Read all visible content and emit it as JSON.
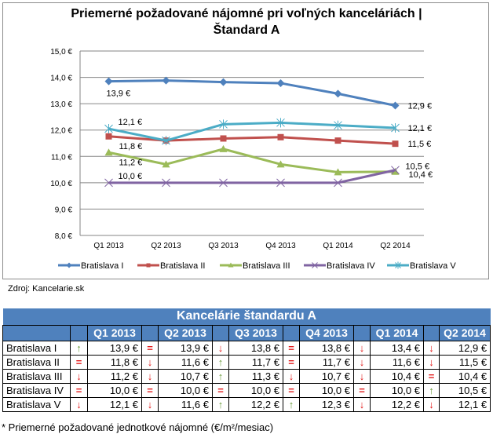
{
  "chart_data": {
    "type": "line",
    "title_line1": "Priemerné  požadované  nájomné  pri voľných kanceláriách  |",
    "title_line2": "Štandard  A",
    "categories": [
      "Q1 2013",
      "Q2 2013",
      "Q3 2013",
      "Q4 2013",
      "Q1 2014",
      "Q2 2014"
    ],
    "ylim": [
      8.0,
      15.0
    ],
    "yticks": [
      "8,0 €",
      "9,0 €",
      "10,0 €",
      "11,0 €",
      "12,0 €",
      "13,0 €",
      "14,0 €",
      "15,0 €"
    ],
    "grid": true,
    "legend_position": "bottom",
    "series": [
      {
        "name": "Bratislava I",
        "color": "#4f81bd",
        "marker": "diamond",
        "values": [
          13.85,
          13.88,
          13.82,
          13.78,
          13.38,
          12.93
        ]
      },
      {
        "name": "Bratislava II",
        "color": "#c0504d",
        "marker": "square",
        "values": [
          11.76,
          11.6,
          11.68,
          11.73,
          11.6,
          11.48
        ]
      },
      {
        "name": "Bratislava III",
        "color": "#9bbb59",
        "marker": "triangle",
        "values": [
          11.15,
          10.7,
          11.28,
          10.7,
          10.4,
          10.42
        ]
      },
      {
        "name": "Bratislava IV",
        "color": "#8064a2",
        "marker": "x",
        "values": [
          10.0,
          10.0,
          10.0,
          10.0,
          10.0,
          10.48
        ]
      },
      {
        "name": "Bratislava V",
        "color": "#4bacc6",
        "marker": "star",
        "values": [
          12.05,
          11.6,
          12.22,
          12.28,
          12.18,
          12.08
        ]
      }
    ],
    "data_labels": [
      {
        "series": 0,
        "point": 0,
        "text": "13,9 €",
        "pos": "below"
      },
      {
        "series": 0,
        "point": 5,
        "text": "12,9 €",
        "pos": "right"
      },
      {
        "series": 4,
        "point": 0,
        "text": "12,1 €",
        "pos": "above-right"
      },
      {
        "series": 4,
        "point": 5,
        "text": "12,1 €",
        "pos": "right"
      },
      {
        "series": 1,
        "point": 0,
        "text": "11,8 €",
        "pos": "below-right"
      },
      {
        "series": 1,
        "point": 5,
        "text": "11,5 €",
        "pos": "right"
      },
      {
        "series": 2,
        "point": 0,
        "text": "11,2 €",
        "pos": "below-right"
      },
      {
        "series": 2,
        "point": 5,
        "text": "10,4 €",
        "pos": "right-low"
      },
      {
        "series": 3,
        "point": 0,
        "text": "10,0 €",
        "pos": "above-right"
      },
      {
        "series": 3,
        "point": 5,
        "text": "10,5 €",
        "pos": "right-high"
      }
    ]
  },
  "source": "Zdroj: Kancelarie.sk",
  "table": {
    "title": "Kancelárie štandardu A",
    "columns": [
      "Q1 2013",
      "Q2 2013",
      "Q3 2013",
      "Q4 2013",
      "Q1 2014",
      "Q2 2014"
    ],
    "arrow_glyphs": {
      "up": "🡑",
      "down": "🡓",
      "eq": "="
    },
    "rows": [
      {
        "name": "Bratislava I",
        "cells": [
          {
            "trend": "up",
            "value": "13,9 €"
          },
          {
            "trend": "eq",
            "value": "13,9 €"
          },
          {
            "trend": "down",
            "value": "13,8 €"
          },
          {
            "trend": "eq",
            "value": "13,8 €"
          },
          {
            "trend": "down",
            "value": "13,4 €"
          },
          {
            "trend": "down",
            "value": "12,9 €"
          }
        ]
      },
      {
        "name": "Bratislava II",
        "cells": [
          {
            "trend": "eq",
            "value": "11,8 €"
          },
          {
            "trend": "down",
            "value": "11,6 €"
          },
          {
            "trend": "up",
            "value": "11,7 €"
          },
          {
            "trend": "eq",
            "value": "11,7 €"
          },
          {
            "trend": "down",
            "value": "11,6 €"
          },
          {
            "trend": "down",
            "value": "11,5 €"
          }
        ]
      },
      {
        "name": "Bratislava III",
        "cells": [
          {
            "trend": "down",
            "value": "11,2 €"
          },
          {
            "trend": "down",
            "value": "10,7 €"
          },
          {
            "trend": "up",
            "value": "11,3 €"
          },
          {
            "trend": "down",
            "value": "10,7 €"
          },
          {
            "trend": "down",
            "value": "10,4 €"
          },
          {
            "trend": "eq",
            "value": "10,4 €"
          }
        ]
      },
      {
        "name": "Bratislava IV",
        "cells": [
          {
            "trend": "eq",
            "value": "10,0 €"
          },
          {
            "trend": "eq",
            "value": "10,0 €"
          },
          {
            "trend": "eq",
            "value": "10,0 €"
          },
          {
            "trend": "eq",
            "value": "10,0 €"
          },
          {
            "trend": "eq",
            "value": "10,0 €"
          },
          {
            "trend": "up",
            "value": "10,5 €"
          }
        ]
      },
      {
        "name": "Bratislava V",
        "cells": [
          {
            "trend": "down",
            "value": "12,1 €"
          },
          {
            "trend": "down",
            "value": "11,6 €"
          },
          {
            "trend": "up",
            "value": "12,2 €"
          },
          {
            "trend": "up",
            "value": "12,3 €"
          },
          {
            "trend": "down",
            "value": "12,2 €"
          },
          {
            "trend": "down",
            "value": "12,1 €"
          }
        ]
      }
    ]
  },
  "footnote": "* Priemerné požadované jednotkové nájomné (€/m²/mesiac)"
}
